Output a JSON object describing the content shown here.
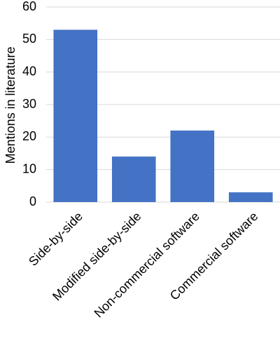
{
  "chart_data": {
    "type": "bar",
    "y_label": "Mentions in literature",
    "categories": [
      "Side-by-side",
      "Modified side-by-side",
      "Non-commercial software",
      "Commercial software"
    ],
    "values": [
      53,
      14,
      22,
      3
    ],
    "color": "#4472c4",
    "ylim": [
      0,
      60
    ],
    "yticks": [
      0,
      10,
      20,
      30,
      40,
      50,
      60
    ],
    "grid": true
  }
}
